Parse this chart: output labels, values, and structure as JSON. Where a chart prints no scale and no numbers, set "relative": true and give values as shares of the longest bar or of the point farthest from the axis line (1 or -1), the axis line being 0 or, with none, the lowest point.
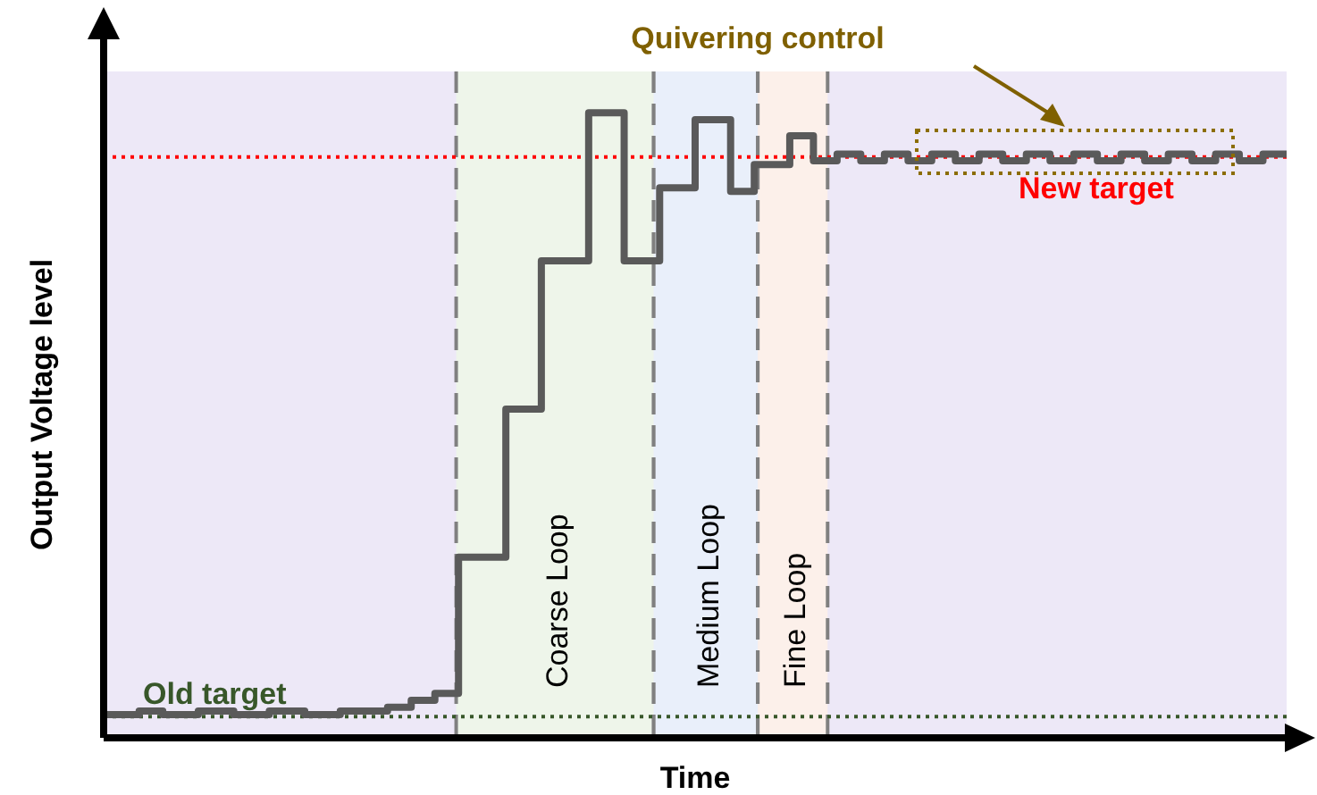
{
  "chart_data": {
    "type": "step",
    "relative": true,
    "xlabel": "Time",
    "ylabel": "Output Voltage level",
    "tick_labels": false,
    "grid": false,
    "marker": "none",
    "line_style": "solid",
    "categories": [
      null,
      null,
      null,
      null,
      null,
      null,
      null,
      null,
      null,
      null,
      null,
      null,
      null,
      null,
      null,
      null,
      null,
      null,
      null,
      null,
      null,
      null,
      null,
      null,
      null,
      null,
      null,
      null,
      null,
      null,
      null,
      null,
      null,
      null,
      null,
      null,
      null,
      null,
      null,
      null,
      null,
      null,
      null,
      null,
      null,
      null,
      null,
      null,
      null,
      null,
      null,
      null,
      null,
      null,
      null,
      null,
      null,
      null,
      null,
      null,
      null,
      null,
      null,
      null,
      null,
      null,
      null,
      null,
      null,
      null,
      null,
      null,
      null,
      null,
      null,
      null,
      null,
      null,
      null,
      null,
      null,
      null,
      null,
      null,
      null,
      null,
      null,
      null,
      null,
      null,
      null,
      null,
      null,
      null,
      null,
      null,
      null,
      null,
      null,
      null,
      null
    ],
    "series": [
      {
        "color": "#5a5a5a",
        "values": [
          0.037,
          0.037,
          0.037,
          0.043,
          0.043,
          0.037,
          0.037,
          0.037,
          0.043,
          0.043,
          0.043,
          0.037,
          0.037,
          0.037,
          0.043,
          0.043,
          0.043,
          0.037,
          0.037,
          0.037,
          0.043,
          0.043,
          0.043,
          0.043,
          0.049,
          0.049,
          0.06,
          0.06,
          0.071,
          0.071,
          0.289,
          0.289,
          0.289,
          0.289,
          0.526,
          0.526,
          0.526,
          0.763,
          0.763,
          0.763,
          0.763,
          1,
          1,
          1,
          0.763,
          0.763,
          0.763,
          0.88,
          0.88,
          0.88,
          0.989,
          0.989,
          0.989,
          0.874,
          0.874,
          0.917,
          0.917,
          0.917,
          0.963,
          0.963,
          0.923,
          0.923,
          0.934,
          0.934,
          0.923,
          0.923,
          0.934,
          0.934,
          0.923,
          0.923,
          0.934,
          0.934,
          0.923,
          0.923,
          0.934,
          0.934,
          0.923,
          0.923,
          0.934,
          0.934,
          0.923,
          0.923,
          0.934,
          0.934,
          0.923,
          0.923,
          0.934,
          0.934,
          0.923,
          0.923,
          0.934,
          0.934,
          0.923,
          0.923,
          0.934,
          0.934,
          0.923,
          0.923,
          0.934,
          0.934,
          0.934
        ]
      }
    ],
    "ref_lines": [
      {
        "axis": "y",
        "value": 0.929,
        "label": "New target",
        "color": "#ff0000",
        "line_style": "dotted"
      },
      {
        "axis": "y",
        "value": 0.034,
        "label": "Old target",
        "color": "#38572a",
        "line_style": "dotted"
      }
    ],
    "annotations": [
      "Quivering control",
      "Coarse Loop",
      "Medium Loop",
      "Fine Loop"
    ]
  }
}
